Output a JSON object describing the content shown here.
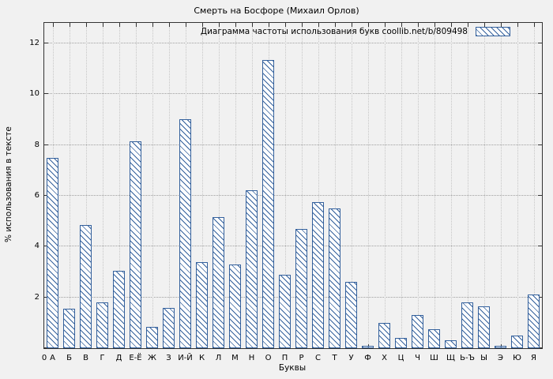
{
  "chart_data": {
    "type": "bar",
    "title": "Смерть на Босфоре (Михаил Орлов)",
    "legend_label": "Диаграмма частоты использования букв coollib.net/b/809498",
    "legend_position": "top-right",
    "xlabel": "Буквы",
    "ylabel": "% использования в тексте",
    "origin_label": "0",
    "categories": [
      "А",
      "Б",
      "В",
      "Г",
      "Д",
      "Е-Ё",
      "Ж",
      "З",
      "И-Й",
      "К",
      "Л",
      "М",
      "Н",
      "О",
      "П",
      "Р",
      "С",
      "Т",
      "У",
      "Ф",
      "Х",
      "Ц",
      "Ч",
      "Ш",
      "Щ",
      "Ь-Ъ",
      "Ы",
      "Э",
      "Ю",
      "Я"
    ],
    "values": [
      7.5,
      1.55,
      4.85,
      1.8,
      3.05,
      8.15,
      0.85,
      1.6,
      9.0,
      3.4,
      5.15,
      3.3,
      6.2,
      11.35,
      2.9,
      4.7,
      5.75,
      5.5,
      2.6,
      0.1,
      1.0,
      0.4,
      1.3,
      0.75,
      0.3,
      1.8,
      1.65,
      0.1,
      0.5,
      2.1
    ],
    "ylim": [
      0,
      12.8
    ],
    "y_ticks": [
      0,
      2,
      4,
      6,
      8,
      10,
      12
    ],
    "grid": true,
    "colors": {
      "accent": "#33609c",
      "bar_fill": "#ffffff",
      "background": "#f1f1f1"
    }
  }
}
